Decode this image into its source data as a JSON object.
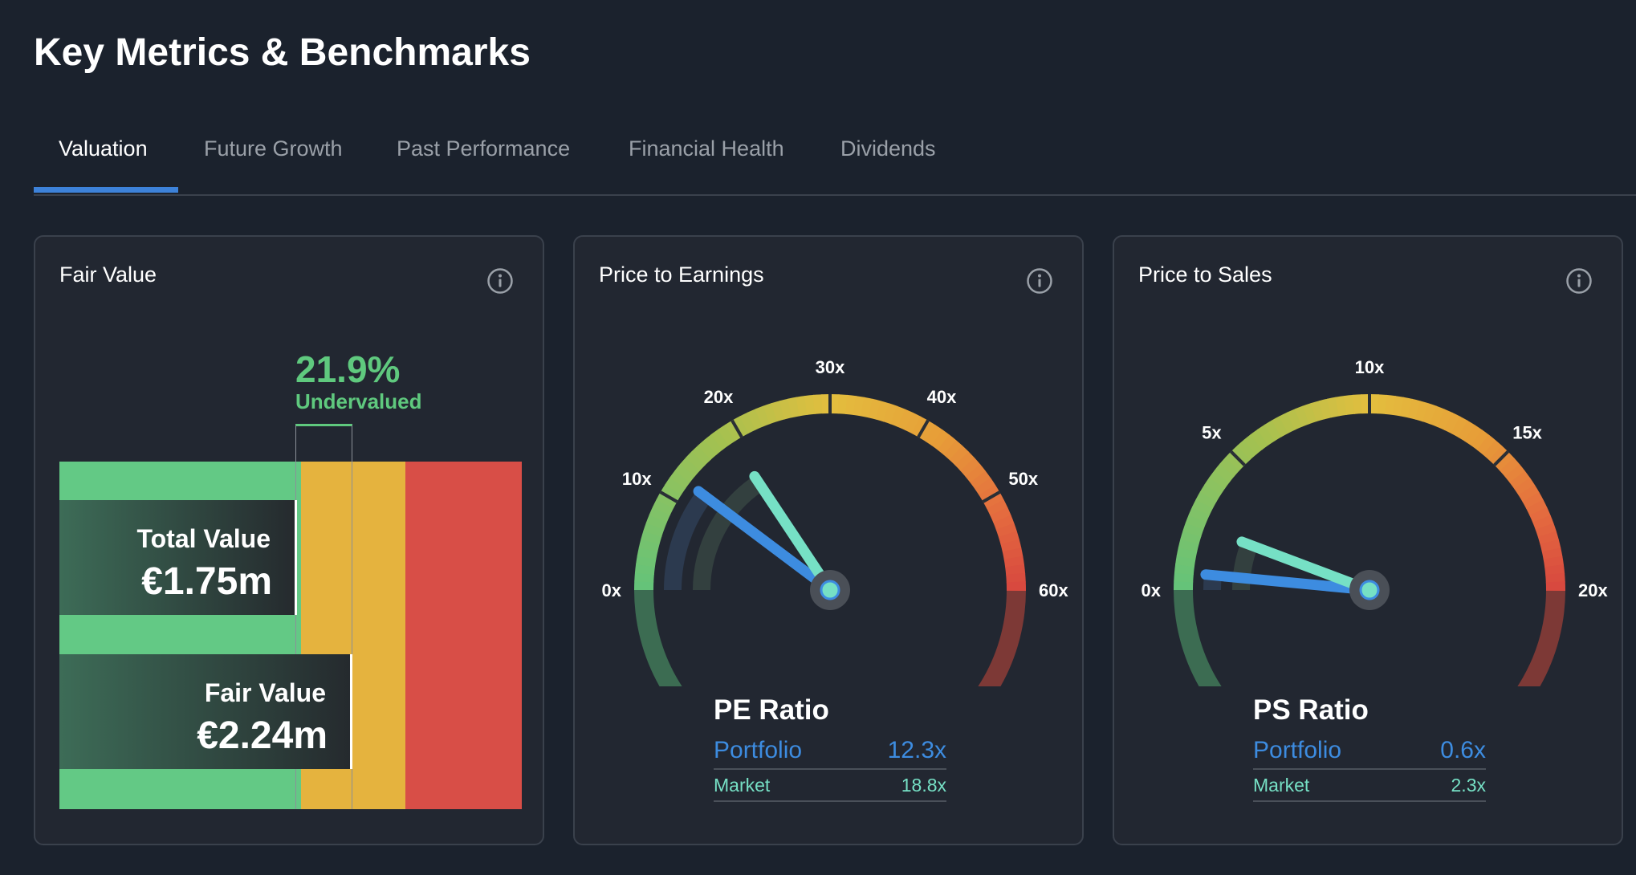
{
  "header": {
    "title": "Key Metrics & Benchmarks"
  },
  "tabs": [
    {
      "label": "Valuation",
      "active": true
    },
    {
      "label": "Future Growth",
      "active": false
    },
    {
      "label": "Past Performance",
      "active": false
    },
    {
      "label": "Financial Health",
      "active": false
    },
    {
      "label": "Dividends",
      "active": false
    }
  ],
  "colors": {
    "accent": "#3d82d9",
    "undervalued": "#5fc97e",
    "fair": "#e5b33e",
    "overvalued": "#d84e47",
    "portfolio": "#3d8ce0",
    "market": "#76e0c5"
  },
  "fair_value": {
    "title": "Fair Value",
    "info_icon": "info-icon",
    "percent": "21.9%",
    "status": "Undervalued",
    "total_value": {
      "label": "Total Value",
      "value": "€1.75m"
    },
    "fair_value": {
      "label": "Fair Value",
      "value": "€2.24m"
    }
  },
  "price_to_earnings": {
    "title": "Price to Earnings",
    "info_icon": "info-icon",
    "ratio_title": "PE Ratio",
    "portfolio": {
      "label": "Portfolio",
      "value": "12.3x",
      "number": 12.3
    },
    "market": {
      "label": "Market",
      "value": "18.8x",
      "number": 18.8
    },
    "scale_max": 60,
    "ticks": [
      "0x",
      "10x",
      "20x",
      "30x",
      "40x",
      "50x",
      "60x"
    ]
  },
  "price_to_sales": {
    "title": "Price to Sales",
    "info_icon": "info-icon",
    "ratio_title": "PS Ratio",
    "portfolio": {
      "label": "Portfolio",
      "value": "0.6x",
      "number": 0.6
    },
    "market": {
      "label": "Market",
      "value": "2.3x",
      "number": 2.3
    },
    "scale_max": 20,
    "ticks": [
      "0x",
      "5x",
      "10x",
      "15x",
      "20x"
    ]
  }
}
